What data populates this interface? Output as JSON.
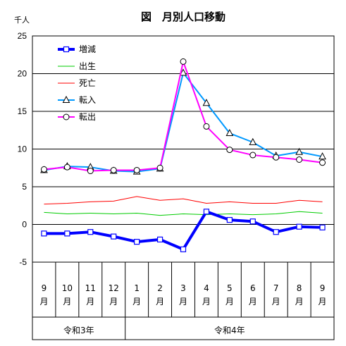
{
  "chart_data": {
    "type": "line",
    "title": "図　月別人口移動",
    "unit_label": "千人",
    "ylim": [
      -5,
      25
    ],
    "yticks": [
      "25",
      "20",
      "15",
      "10",
      "5",
      "0",
      "-5"
    ],
    "ytick_values": [
      25,
      20,
      15,
      10,
      5,
      0,
      -5
    ],
    "categories": [
      {
        "num": "9",
        "suffix": "月"
      },
      {
        "num": "10",
        "suffix": "月"
      },
      {
        "num": "11",
        "suffix": "月"
      },
      {
        "num": "12",
        "suffix": "月"
      },
      {
        "num": "1",
        "suffix": "月"
      },
      {
        "num": "2",
        "suffix": "月"
      },
      {
        "num": "3",
        "suffix": "月"
      },
      {
        "num": "4",
        "suffix": "月"
      },
      {
        "num": "5",
        "suffix": "月"
      },
      {
        "num": "6",
        "suffix": "月"
      },
      {
        "num": "7",
        "suffix": "月"
      },
      {
        "num": "8",
        "suffix": "月"
      },
      {
        "num": "9",
        "suffix": "月"
      }
    ],
    "eras": [
      {
        "label": "令和3年",
        "start": 0,
        "end": 3
      },
      {
        "label": "令和4年",
        "start": 4,
        "end": 12
      }
    ],
    "grid": "horizontal",
    "legend_position": "top-left",
    "series": [
      {
        "name": "増減",
        "color": "#0000ff",
        "marker": "square",
        "values": [
          -1.2,
          -1.2,
          -1.0,
          -1.6,
          -2.3,
          -2.0,
          -3.3,
          1.7,
          0.6,
          0.4,
          -1.0,
          -0.3,
          -0.4
        ]
      },
      {
        "name": "出生",
        "color": "#00cc00",
        "marker": "none",
        "values": [
          1.6,
          1.4,
          1.5,
          1.4,
          1.5,
          1.2,
          1.4,
          1.3,
          1.4,
          1.3,
          1.4,
          1.7,
          1.5
        ]
      },
      {
        "name": "死亡",
        "color": "#ff0000",
        "marker": "none",
        "values": [
          2.7,
          2.8,
          3.0,
          3.1,
          3.7,
          3.2,
          3.4,
          2.8,
          3.0,
          2.8,
          2.8,
          3.2,
          3.0
        ]
      },
      {
        "name": "転入",
        "color": "#0099ff",
        "marker": "triangle",
        "values": [
          7.2,
          7.7,
          7.6,
          7.1,
          7.0,
          7.4,
          20.1,
          16.1,
          12.1,
          10.9,
          9.1,
          9.6,
          9.0
        ]
      },
      {
        "name": "転出",
        "color": "#ff00ff",
        "marker": "circle",
        "values": [
          7.3,
          7.6,
          7.1,
          7.2,
          7.2,
          7.5,
          21.6,
          13.0,
          9.9,
          9.2,
          8.9,
          8.6,
          8.2
        ]
      }
    ]
  }
}
